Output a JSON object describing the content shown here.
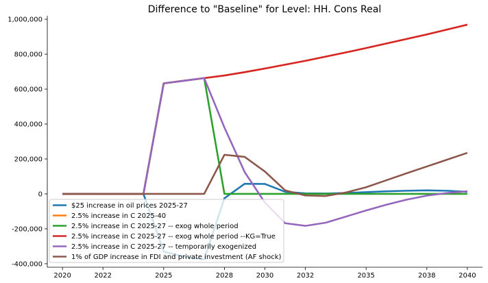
{
  "chart_data": {
    "type": "line",
    "title": "Difference to \"Baseline\" for Level: HH. Cons Real",
    "xlabel": "",
    "ylabel": "",
    "xlim": [
      2019.25,
      2040.75
    ],
    "ylim": [
      -420000,
      1020000
    ],
    "x_ticks": [
      2020,
      2022,
      2025,
      2028,
      2030,
      2032,
      2035,
      2038,
      2040
    ],
    "x_tick_labels": [
      "2020",
      "2022",
      "2025",
      "2028",
      "2030",
      "2032",
      "2035",
      "2038",
      "2040"
    ],
    "y_ticks": [
      -400000,
      -200000,
      0,
      200000,
      400000,
      600000,
      800000,
      1000000
    ],
    "y_tick_labels": [
      "-400,000",
      "-200,000",
      "0",
      "200,000",
      "400,000",
      "600,000",
      "800,000",
      "1,000,000"
    ],
    "grid": false,
    "legend_position": "lower-left",
    "x": [
      2020,
      2021,
      2022,
      2023,
      2024,
      2025,
      2026,
      2027,
      2028,
      2029,
      2030,
      2031,
      2032,
      2033,
      2034,
      2035,
      2036,
      2037,
      2038,
      2039,
      2040
    ],
    "series": [
      {
        "name": "$25 increase in oil prices 2025-27",
        "color": "#1f77b4",
        "values": [
          0,
          0,
          0,
          0,
          0,
          -330000,
          -360000,
          -375000,
          -25000,
          58000,
          57000,
          12000,
          3000,
          2000,
          5000,
          10000,
          15000,
          18000,
          20000,
          18000,
          12000
        ]
      },
      {
        "name": "2.5% increase in C 2025-40",
        "color": "#ff7f0e",
        "values": [
          0,
          0,
          0,
          0,
          0,
          633000,
          648000,
          663000,
          678000,
          697000,
          718000,
          740000,
          762000,
          786000,
          810000,
          835000,
          861000,
          887000,
          913000,
          941000,
          969000
        ]
      },
      {
        "name": "2.5% increase in C 2025-27 -- exog whole period",
        "color": "#2ca02c",
        "values": [
          0,
          0,
          0,
          0,
          0,
          633000,
          648000,
          663000,
          0,
          0,
          0,
          0,
          0,
          0,
          0,
          0,
          0,
          0,
          0,
          0,
          0
        ]
      },
      {
        "name": "2.5% increase in C 2025-27 -- exog whole period --KG=True",
        "color": "#d62728",
        "values": [
          0,
          0,
          0,
          0,
          0,
          633000,
          648000,
          663000,
          678000,
          697000,
          718000,
          740000,
          762000,
          786000,
          810000,
          835000,
          861000,
          887000,
          913000,
          941000,
          969000
        ]
      },
      {
        "name": "2.5% increase in C 2025-27 -- temporarily exogenized",
        "color": "#9467bd",
        "values": [
          0,
          0,
          0,
          0,
          0,
          633000,
          648000,
          663000,
          380000,
          125000,
          -50000,
          -168000,
          -183000,
          -165000,
          -130000,
          -95000,
          -62000,
          -33000,
          -10000,
          5000,
          15000
        ]
      },
      {
        "name": "1% of GDP increase in FDI and private investment (AF shock)",
        "color": "#8c564b",
        "values": [
          0,
          0,
          0,
          0,
          0,
          0,
          0,
          0,
          224000,
          212000,
          128000,
          20000,
          -9000,
          -12000,
          8000,
          38000,
          78000,
          118000,
          157000,
          196000,
          235000
        ]
      }
    ]
  }
}
